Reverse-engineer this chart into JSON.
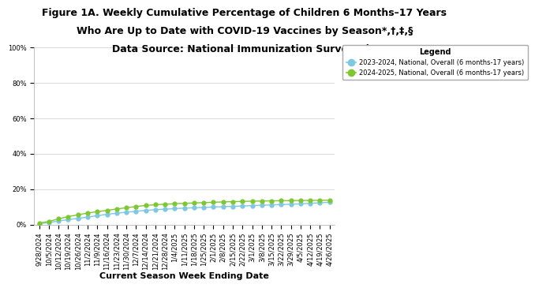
{
  "title_line1": "Figure 1A. Weekly Cumulative Percentage of Children 6 Months–17 Years",
  "title_line2": "Who Are Up to Date with COVID-19 Vaccines by Season*,†,‡,§",
  "title_line3": "Data Source: National Immunization Survey–Flu",
  "xlabel": "Current Season Week Ending Date",
  "legend_title": "Legend",
  "legend_label_2023": "2023-2024, National, Overall (6 months-17 years)",
  "legend_label_2024": "2024-2025, National, Overall (6 months-17 years)",
  "color_2023": "#7EC8E3",
  "color_2024": "#7DC832",
  "x_labels": [
    "9/28/2024",
    "10/5/2024",
    "10/12/2024",
    "10/19/2024",
    "10/26/2024",
    "11/2/2024",
    "11/9/2024",
    "11/16/2024",
    "11/23/2024",
    "11/30/2024",
    "12/7/2024",
    "12/14/2024",
    "12/21/2024",
    "12/28/2024",
    "1/4/2025",
    "1/11/2025",
    "1/18/2025",
    "1/25/2025",
    "2/1/2025",
    "2/8/2025",
    "2/15/2025",
    "2/22/2025",
    "3/1/2025",
    "3/8/2025",
    "3/15/2025",
    "3/22/2025",
    "3/29/2025",
    "4/5/2025",
    "4/12/2025",
    "4/19/2025",
    "4/26/2025"
  ],
  "values_2023": [
    0.5,
    1.2,
    2.0,
    2.8,
    3.5,
    4.2,
    5.0,
    5.8,
    6.4,
    7.0,
    7.5,
    8.0,
    8.4,
    8.7,
    9.0,
    9.3,
    9.5,
    9.7,
    9.9,
    10.1,
    10.3,
    10.5,
    10.7,
    10.9,
    11.1,
    11.3,
    11.5,
    11.7,
    12.0,
    12.3,
    12.6
  ],
  "values_2024": [
    0.8,
    1.8,
    3.2,
    4.5,
    5.5,
    6.5,
    7.3,
    8.0,
    8.8,
    9.5,
    10.2,
    10.8,
    11.2,
    11.5,
    11.8,
    12.0,
    12.2,
    12.4,
    12.6,
    12.8,
    12.95,
    13.1,
    13.2,
    13.3,
    13.4,
    13.5,
    13.55,
    13.6,
    13.65,
    13.7,
    13.75
  ],
  "ylim": [
    0,
    100
  ],
  "yticks": [
    0,
    20,
    40,
    60,
    80,
    100
  ],
  "bg_color": "#ffffff",
  "plot_bg_color": "#ffffff",
  "title_fontsize": 9,
  "tick_fontsize": 6,
  "xlabel_fontsize": 8
}
